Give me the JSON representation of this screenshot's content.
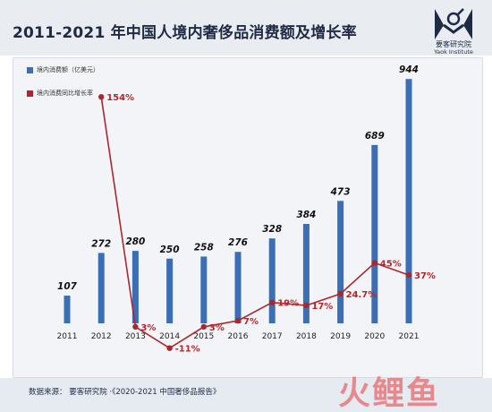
{
  "header": {
    "title": "2011-2021 年中国人境内奢侈品消费额及增长率",
    "logo_cn": "要客研究院",
    "logo_en": "Yaok Institute"
  },
  "footer": {
    "source": "数据来源： 要客研究院 ·《2020-2021 中国奢侈品报告》",
    "watermark": "火鲤鱼"
  },
  "colors": {
    "bar": "#3a6fb5",
    "line": "#a8282d",
    "label": "#b3262b"
  },
  "chart_data": {
    "type": "bar",
    "categories": [
      "2011",
      "2012",
      "2013",
      "2014",
      "2015",
      "2016",
      "2017",
      "2018",
      "2019",
      "2020",
      "2021"
    ],
    "series": [
      {
        "name": "境内消费额（亿美元）",
        "type": "bar",
        "values": [
          107,
          272,
          280,
          250,
          258,
          276,
          328,
          384,
          473,
          689,
          944
        ],
        "labels": [
          "107",
          "272",
          "280",
          "250",
          "258",
          "276",
          "328",
          "384",
          "473",
          "689",
          "944"
        ]
      },
      {
        "name": "境内消费同比增长率",
        "type": "line",
        "values": [
          null,
          154,
          3,
          -11,
          3,
          7,
          19,
          17,
          24.7,
          45,
          37
        ],
        "labels": [
          "",
          "154%",
          "3%",
          "-11%",
          "3%",
          "7%",
          "19%",
          "17%",
          "24.7%",
          "45%",
          "37%"
        ]
      }
    ],
    "legend_position": "top-left",
    "grid": false
  }
}
